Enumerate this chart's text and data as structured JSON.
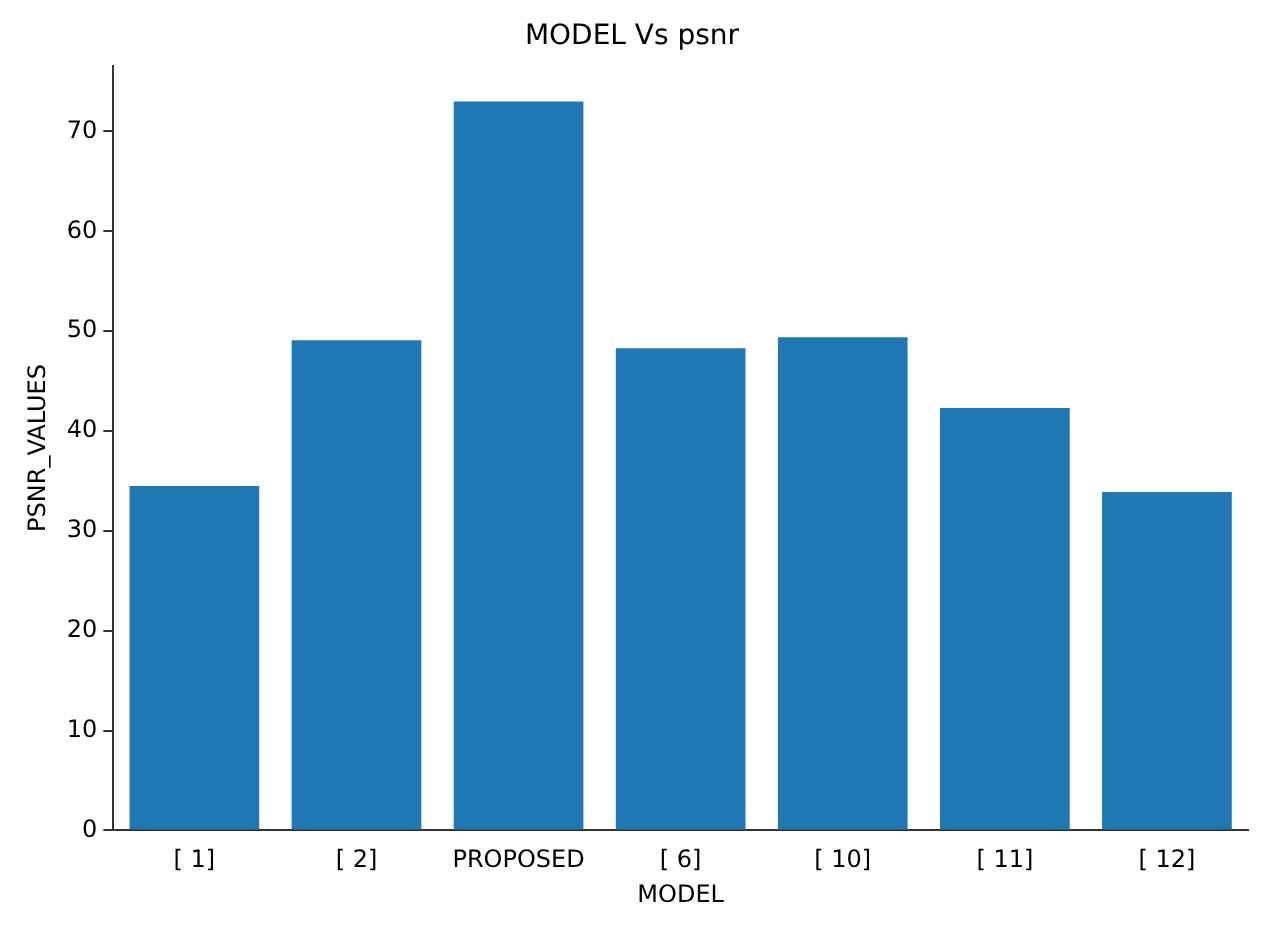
{
  "chart_data": {
    "type": "bar",
    "title": "MODEL Vs psnr",
    "xlabel": "MODEL",
    "ylabel": "PSNR_VALUES",
    "categories": [
      "[ 1]",
      "[ 2]",
      "PROPOSED",
      "[ 6]",
      "[ 10]",
      "[ 11]",
      "[ 12]"
    ],
    "values": [
      34.5,
      49.1,
      73.0,
      48.3,
      49.4,
      42.3,
      33.9
    ],
    "color": "#1f77b4",
    "ylim": [
      0,
      76.6
    ],
    "yticks": [
      0,
      10,
      20,
      30,
      40,
      50,
      60,
      70
    ],
    "grid": false,
    "legend": false
  }
}
